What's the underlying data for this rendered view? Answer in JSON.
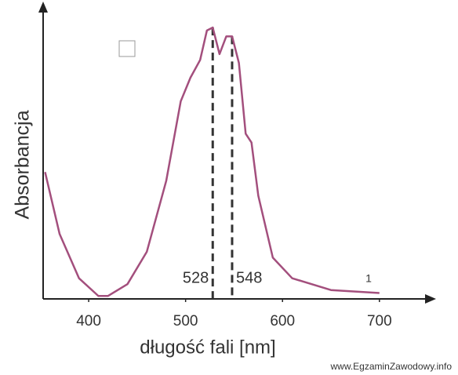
{
  "chart_data": {
    "type": "line",
    "x_label": "długość fali  [nm]",
    "y_label": "Absorbancja",
    "series_label": "1",
    "watermark": "www.EgzaminZawodowy.info",
    "x": [
      355,
      370,
      390,
      410,
      420,
      440,
      460,
      480,
      495,
      505,
      515,
      522,
      528,
      535,
      542,
      548,
      555,
      562,
      568,
      575,
      590,
      610,
      650,
      700
    ],
    "series": [
      {
        "color": "#a34f7d",
        "values": [
          0.43,
          0.22,
          0.07,
          0.01,
          0.01,
          0.05,
          0.16,
          0.4,
          0.67,
          0.75,
          0.81,
          0.91,
          0.92,
          0.83,
          0.89,
          0.89,
          0.8,
          0.56,
          0.53,
          0.35,
          0.14,
          0.07,
          0.03,
          0.02
        ]
      }
    ],
    "xlim": [
      353,
      756
    ],
    "ylim": [
      0,
      1
    ],
    "xticks": [
      400,
      500,
      600,
      700
    ],
    "vlines": [
      528,
      548
    ],
    "vline_color": "#55508f"
  }
}
